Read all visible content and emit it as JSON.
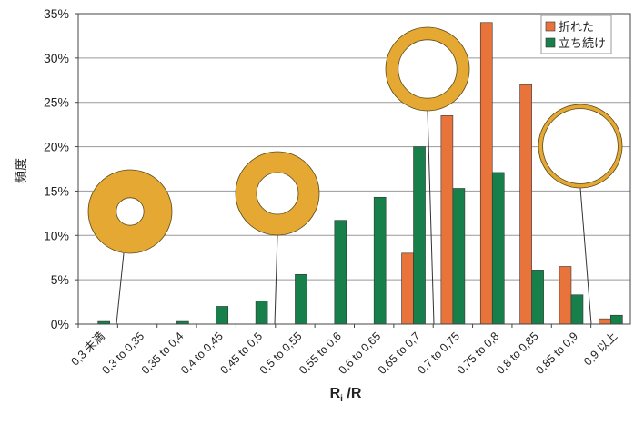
{
  "chart_data": {
    "type": "bar",
    "title": "",
    "xlabel": "Ri /R",
    "xlabel_main": "R",
    "xlabel_sub": "i",
    "xlabel_tail": " /R",
    "ylabel": "頻度",
    "ylim": [
      0,
      35
    ],
    "yticks": [
      "0%",
      "5%",
      "10%",
      "15%",
      "20%",
      "25%",
      "30%",
      "35%"
    ],
    "grid": true,
    "legend_position": "top-right",
    "categories": [
      "0,3 未満",
      "0,3 to 0,35",
      "0,35 to 0,4",
      "0,4 to 0,45",
      "0,45 to 0,5",
      "0,5 to 0,55",
      "0,55 to 0,6",
      "0,6 to 0,65",
      "0,65 to 0,7",
      "0,7 to 0,75",
      "0,75 to 0,8",
      "0,8 to 0,85",
      "0,85 to 0,9",
      "0,9 以上"
    ],
    "series": [
      {
        "name": "折れた",
        "color": "#e8743b",
        "values": [
          0,
          0,
          0,
          0,
          0,
          0,
          0,
          0,
          8.0,
          23.5,
          34.0,
          27.0,
          6.5,
          0.6
        ]
      },
      {
        "name": "立ち続け",
        "color": "#17804a",
        "values": [
          0.3,
          0,
          0.3,
          2.0,
          2.6,
          5.6,
          11.7,
          14.3,
          20.0,
          15.3,
          17.1,
          6.1,
          3.3,
          1.0
        ]
      }
    ],
    "ring_color": "#e5a933",
    "ring_annotations": [
      {
        "category": "0,3 to 0,35",
        "inner_ratio": 0.33
      },
      {
        "category": "0,5 to 0,55",
        "inner_ratio": 0.5
      },
      {
        "category": "0,7 to 0,75",
        "inner_ratio": 0.7
      },
      {
        "category": "0,85 to 0,9",
        "inner_ratio": 0.9
      }
    ]
  }
}
